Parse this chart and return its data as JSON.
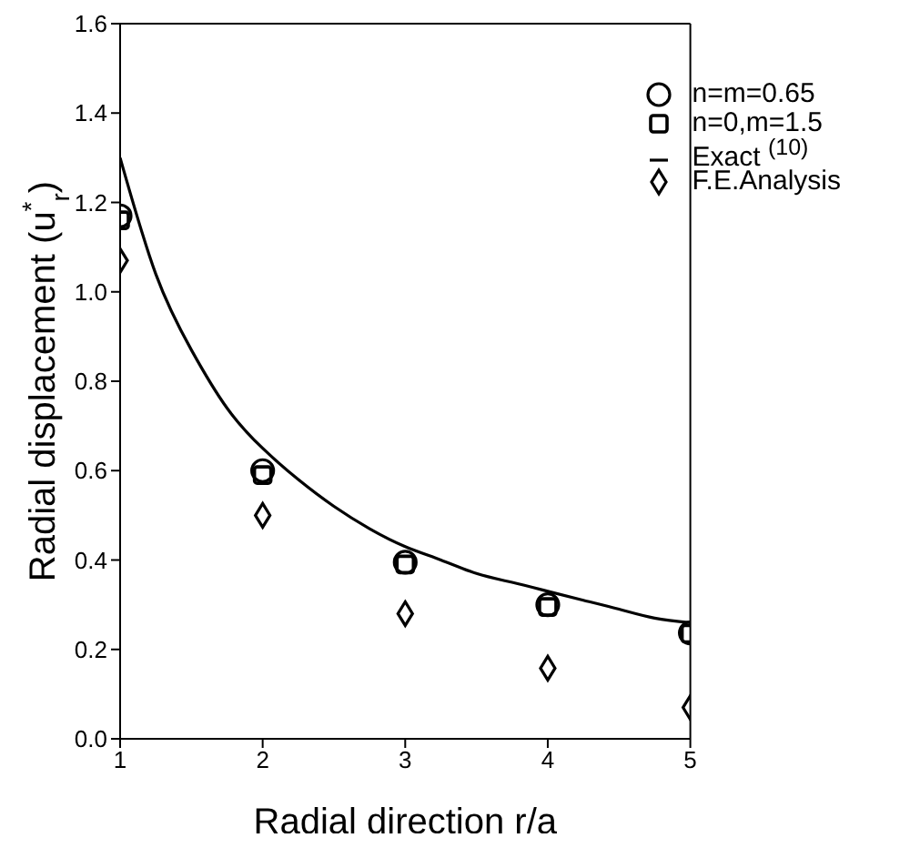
{
  "chart_data": {
    "type": "scatter",
    "xlabel": "Radial direction  r/a",
    "ylabel": "Radial displacement   (u$^{*}$$_{r}$)",
    "xlim": [
      1,
      5
    ],
    "xticks": [
      1,
      2,
      3,
      4,
      5
    ],
    "ylim": [
      0,
      1.6
    ],
    "yticks": [
      {
        "value": 0,
        "label": "0.0"
      },
      0.2,
      0.4,
      0.6,
      0.8,
      {
        "value": 1,
        "label": "1.0"
      },
      1.2,
      1.4,
      1.6
    ],
    "grid": false,
    "legend": "top right",
    "series": [
      {
        "name": "n=m=0.65",
        "marker": "circle",
        "color": "#000000",
        "x": [
          1,
          2,
          3,
          4,
          5
        ],
        "values": [
          1.17,
          0.6,
          0.395,
          0.3,
          0.237
        ]
      },
      {
        "name": "n=0,m=1.5",
        "marker": "square",
        "color": "#000000",
        "x": [
          1,
          2,
          3,
          4,
          5
        ],
        "values": [
          1.16,
          0.59,
          0.39,
          0.295,
          0.235
        ]
      },
      {
        "name": "Exact $^{(10)}$",
        "type": "line",
        "line_style": "solid",
        "color": "#000000",
        "x": [
          1,
          1.25,
          1.5,
          1.75,
          2,
          2.25,
          2.5,
          2.75,
          3,
          3.25,
          3.5,
          3.75,
          4,
          4.25,
          4.5,
          4.75,
          5
        ],
        "values": [
          1.3,
          1.04,
          0.87,
          0.74,
          0.65,
          0.58,
          0.52,
          0.47,
          0.43,
          0.4,
          0.37,
          0.35,
          0.33,
          0.31,
          0.29,
          0.27,
          0.26
        ]
      },
      {
        "name": "F.E.Analysis",
        "marker": "diamond",
        "color": "#000000",
        "x": [
          1,
          2,
          3,
          4,
          5
        ],
        "values": [
          1.07,
          0.5,
          0.28,
          0.158,
          0.07
        ]
      }
    ]
  }
}
